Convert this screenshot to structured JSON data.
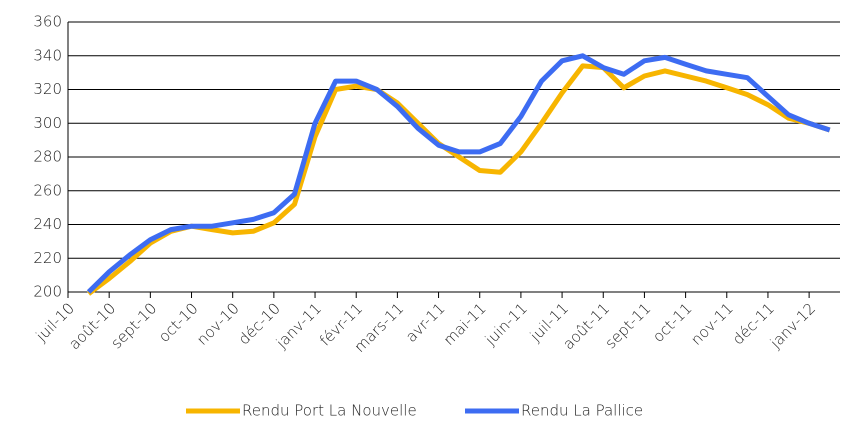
{
  "chart_data": {
    "type": "line",
    "categories": [
      "juil-10",
      null,
      "août-10",
      null,
      "sept-10",
      null,
      "oct-10",
      null,
      "nov-10",
      null,
      "déc-10",
      null,
      "janv-11",
      null,
      "févr-11",
      null,
      "mars-11",
      null,
      "avr-11",
      null,
      "mai-11",
      null,
      "juin-11",
      null,
      "juil-11",
      null,
      "août-11",
      null,
      "sept-11",
      null,
      "oct-11",
      null,
      "nov-11",
      null,
      "déc-11",
      null,
      "janv-12",
      null
    ],
    "series": [
      {
        "name": "Rendu Port La Nouvelle",
        "color": "#f7b500",
        "values": [
          null,
          199,
          208,
          218,
          229,
          236,
          239,
          237,
          235,
          236,
          241,
          252,
          292,
          320,
          322,
          320,
          312,
          300,
          288,
          280,
          272,
          271,
          283,
          300,
          318,
          334,
          333,
          321,
          328,
          331,
          328,
          325,
          321,
          317,
          311,
          303,
          300,
          296
        ]
      },
      {
        "name": "Rendu La Pallice",
        "color": "#3d6cf2",
        "values": [
          null,
          200,
          212,
          222,
          231,
          237,
          239,
          239,
          241,
          243,
          247,
          258,
          300,
          325,
          325,
          320,
          310,
          297,
          287,
          283,
          283,
          288,
          304,
          325,
          337,
          340,
          333,
          329,
          337,
          339,
          335,
          331,
          329,
          327,
          316,
          305,
          300,
          296
        ]
      }
    ],
    "ylim": [
      200,
      360
    ],
    "yticks": [
      200,
      220,
      240,
      260,
      280,
      300,
      320,
      340,
      360
    ],
    "grid": true,
    "legend": "bottom"
  }
}
